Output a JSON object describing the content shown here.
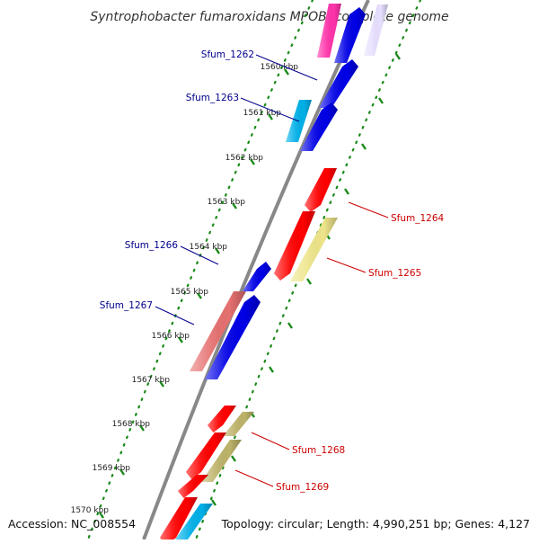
{
  "title": "Syntrophobacter fumaroxidans MPOB, complete genome",
  "footer": {
    "accession": "Accession: NC_008554",
    "summary": "Topology: circular; Length: 4,990,251 bp; Genes: 4,127"
  },
  "colors": {
    "backbone": "#888888",
    "ruler_dots": "#1a8a1a",
    "ruler_ticks": "#1a8a1a",
    "label_forward": "#00008b",
    "label_reverse": "#cc0000"
  },
  "ruler_ticks": [
    {
      "label": "1560 kbp"
    },
    {
      "label": "1561 kbp"
    },
    {
      "label": "1562 kbp"
    },
    {
      "label": "1563 kbp"
    },
    {
      "label": "1564 kbp"
    },
    {
      "label": "1565 kbp"
    },
    {
      "label": "1566 kbp"
    },
    {
      "label": "1567 kbp"
    },
    {
      "label": "1568 kbp"
    },
    {
      "label": "1569 kbp"
    },
    {
      "label": "1570 kbp"
    }
  ],
  "gene_labels": [
    {
      "name": "Sfum_1262",
      "strand": "forward"
    },
    {
      "name": "Sfum_1263",
      "strand": "forward"
    },
    {
      "name": "Sfum_1264",
      "strand": "reverse"
    },
    {
      "name": "Sfum_1265",
      "strand": "reverse"
    },
    {
      "name": "Sfum_1266",
      "strand": "forward"
    },
    {
      "name": "Sfum_1267",
      "strand": "forward"
    },
    {
      "name": "Sfum_1268",
      "strand": "reverse"
    },
    {
      "name": "Sfum_1269",
      "strand": "reverse"
    }
  ],
  "features": [
    {
      "color": "#ff33aa"
    },
    {
      "color": "#0000e6"
    },
    {
      "color": "#0000e6"
    },
    {
      "color": "#00b0e8"
    },
    {
      "color": "#0000e6"
    },
    {
      "color": "#ff0000"
    },
    {
      "color": "#ff0000"
    },
    {
      "color": "#eee58a"
    },
    {
      "color": "#0000e6"
    },
    {
      "color": "#e67070"
    },
    {
      "color": "#0000e6"
    },
    {
      "color": "#ff0000"
    },
    {
      "color": "#bdb36a"
    },
    {
      "color": "#ff0000"
    },
    {
      "color": "#bdb36a"
    },
    {
      "color": "#ff0000"
    },
    {
      "color": "#ff0000"
    },
    {
      "color": "#00b0e8"
    },
    {
      "color": "#e8e0ff"
    }
  ]
}
